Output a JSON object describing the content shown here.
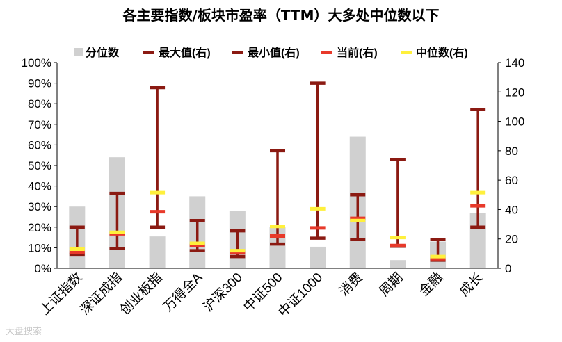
{
  "chart_data": {
    "type": "bar",
    "title": "各主要指数/板块市盈率（TTM）大多处中位数以下",
    "categories": [
      "上证指数",
      "深证成指",
      "创业板指",
      "万得全A",
      "沪深300",
      "中证500",
      "中证1000",
      "消费",
      "周期",
      "金融",
      "成长"
    ],
    "left_axis": {
      "min": 0,
      "max": 1,
      "ticks": [
        "0%",
        "10%",
        "20%",
        "30%",
        "40%",
        "50%",
        "60%",
        "70%",
        "80%",
        "90%",
        "100%"
      ]
    },
    "right_axis": {
      "min": 0,
      "max": 140,
      "ticks": [
        "0",
        "20",
        "40",
        "60",
        "80",
        "100",
        "120",
        "140"
      ]
    },
    "series": [
      {
        "name": "分位数",
        "axis": "left",
        "kind": "bar",
        "color": "#d0d0d0",
        "values": [
          0.3,
          0.54,
          0.155,
          0.35,
          0.28,
          0.2,
          0.105,
          0.64,
          0.04,
          0.13,
          0.27
        ]
      },
      {
        "name": "最大值(右)",
        "axis": "right",
        "kind": "marker",
        "color": "#8b1a12",
        "values": [
          28,
          51,
          123,
          32.5,
          25.5,
          80,
          126,
          50,
          74,
          19.5,
          108
        ]
      },
      {
        "name": "最小值(右)",
        "axis": "right",
        "kind": "marker",
        "color": "#8b1a12",
        "values": [
          9.5,
          13.5,
          28,
          12,
          8,
          16.5,
          20.5,
          19.5,
          15,
          5.5,
          28
        ]
      },
      {
        "name": "当前(右)",
        "axis": "right",
        "kind": "marker",
        "color": "#e8392a",
        "values": [
          11,
          23.5,
          38.5,
          15.5,
          10.5,
          22,
          27.5,
          34,
          15.5,
          6.5,
          42.5
        ]
      },
      {
        "name": "中位数(右)",
        "axis": "right",
        "kind": "marker",
        "color": "#fff03c",
        "values": [
          13,
          24.5,
          51.5,
          17,
          12,
          28.5,
          40.5,
          32.5,
          21,
          8,
          51.5
        ]
      }
    ],
    "legend": "top"
  },
  "watermark": "大盘搜索"
}
